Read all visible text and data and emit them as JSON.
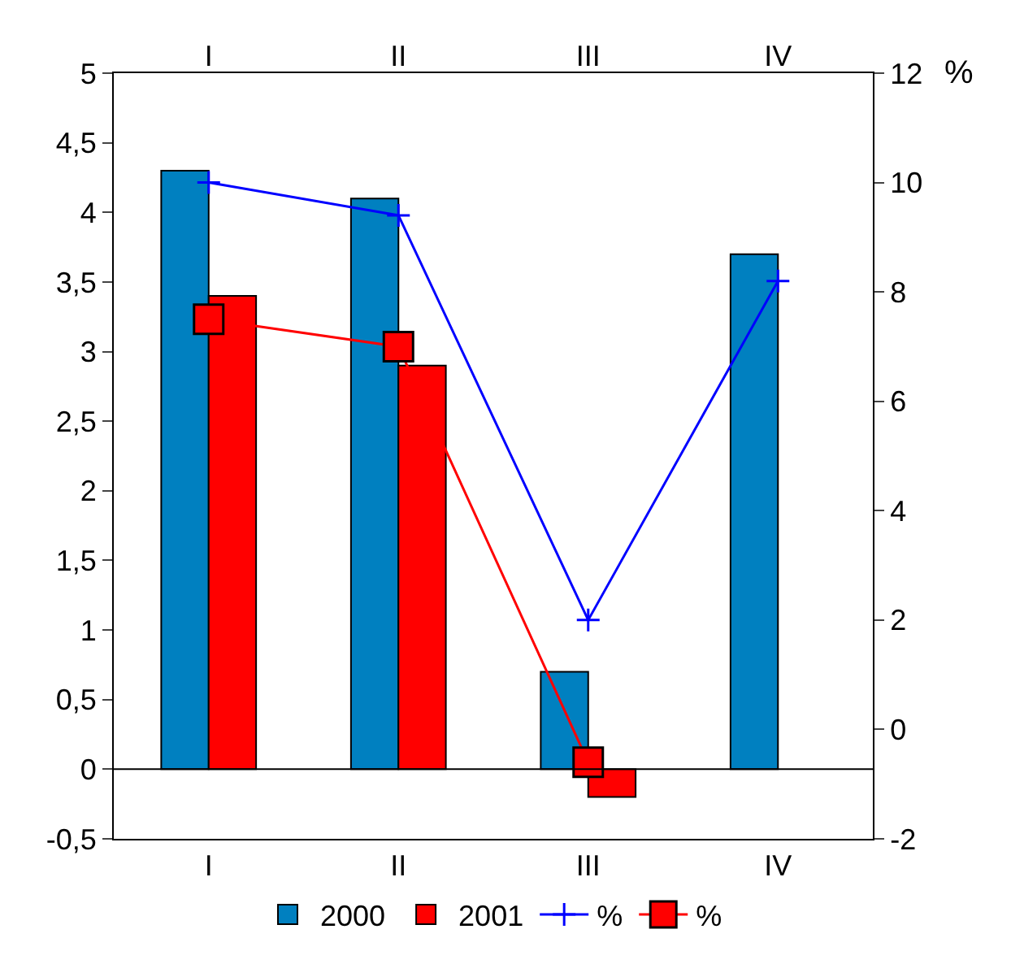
{
  "chart_data": {
    "type": "bar",
    "categories": [
      "I",
      "II",
      "III",
      "IV"
    ],
    "series": [
      {
        "name": "2000",
        "color": "#0080c0",
        "values": [
          4.3,
          4.1,
          0.7,
          3.7
        ]
      },
      {
        "name": "2001",
        "color": "#ff0000",
        "values": [
          3.4,
          2.9,
          -0.2,
          null
        ]
      },
      {
        "name": "%",
        "type": "line",
        "axis": "y2",
        "color": "#0000ff",
        "marker": "cross",
        "values": [
          10.0,
          9.4,
          2.0,
          8.2
        ]
      },
      {
        "name": "%",
        "type": "line",
        "axis": "y2",
        "color": "#ff0000",
        "marker": "square",
        "values": [
          7.5,
          7.0,
          -0.6,
          null
        ]
      }
    ],
    "y2label": "%",
    "ylim": [
      -0.5,
      5
    ],
    "yticks": [
      {
        "value": -0.5,
        "label": "-0,5"
      },
      0,
      {
        "value": 0.5,
        "label": "0,5"
      },
      1,
      {
        "value": 1.5,
        "label": "1,5"
      },
      2,
      {
        "value": 2.5,
        "label": "2,5"
      },
      3,
      {
        "value": 3.5,
        "label": "3,5"
      },
      4,
      {
        "value": 4.5,
        "label": "4,5"
      },
      5
    ],
    "y2lim": [
      -2,
      12
    ],
    "y2ticks": [
      -2,
      0,
      2,
      4,
      6,
      8,
      10,
      12
    ],
    "ref_lines": [
      {
        "axis": "y",
        "value": 0,
        "color": "#000000"
      }
    ],
    "legend": "bottom"
  }
}
